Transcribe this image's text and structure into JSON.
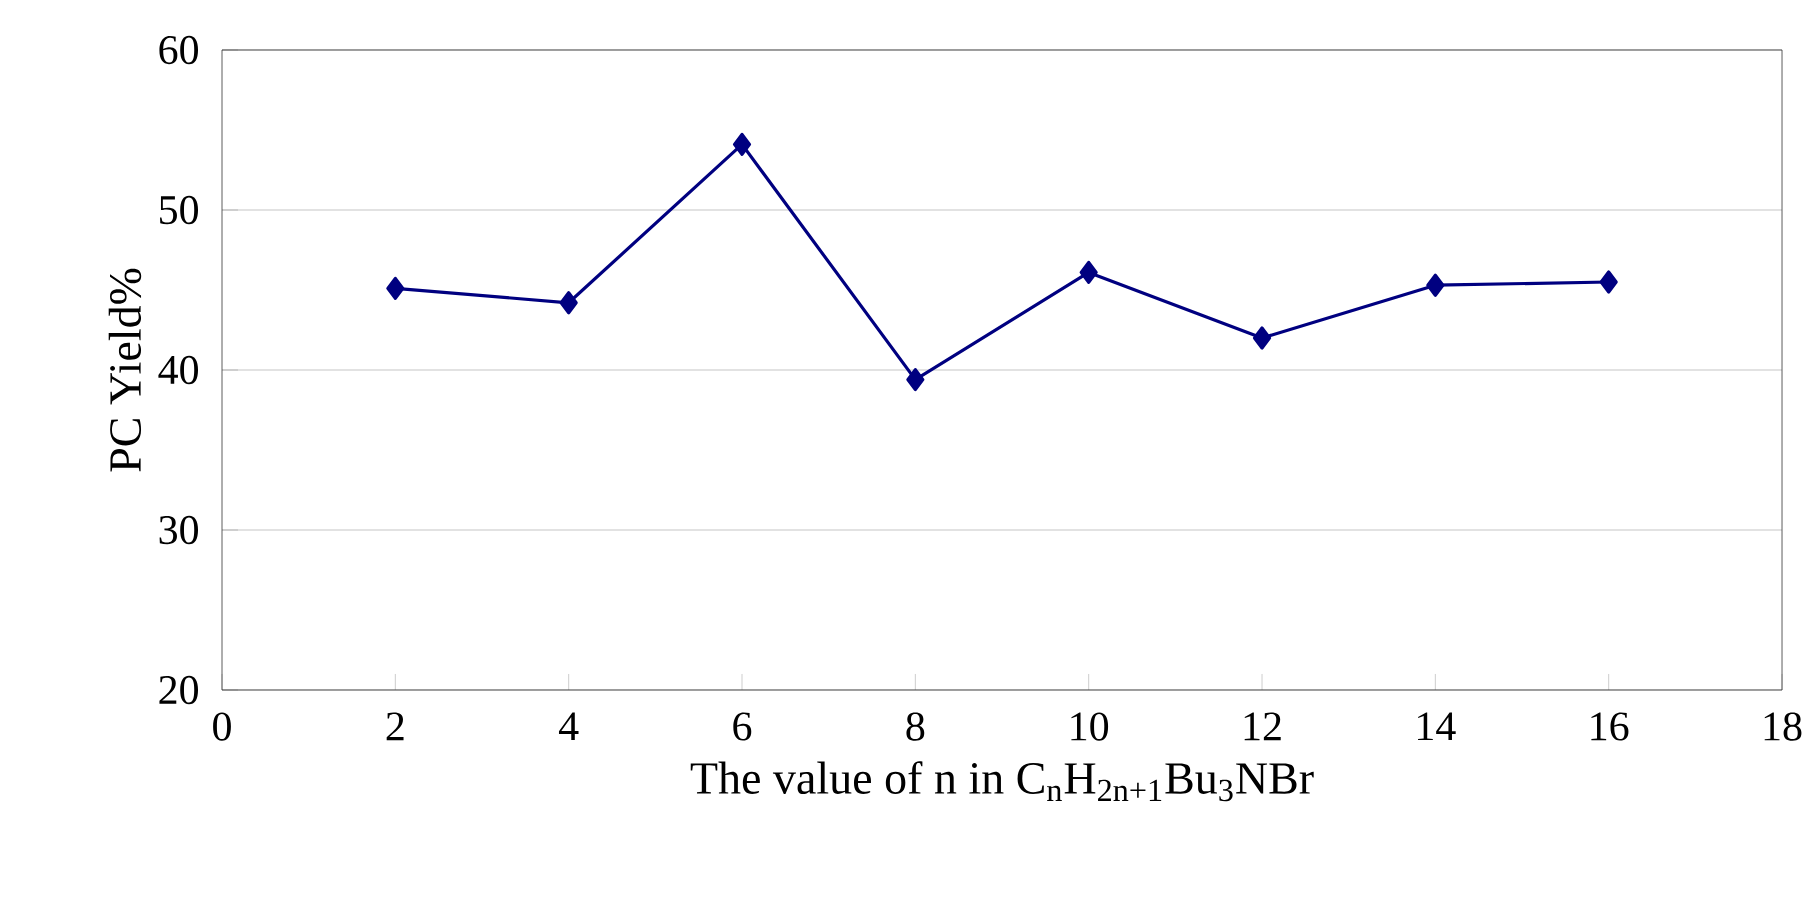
{
  "chart_data": {
    "type": "line",
    "xlabel": "The value of n in C$_{n}$H$_{2n+1}$Bu$_{3}$NBr",
    "ylabel": "PC Yield%",
    "x": [
      2,
      4,
      6,
      8,
      10,
      12,
      14,
      16
    ],
    "series": [
      {
        "color": "#000080",
        "values": [
          45.1,
          44.2,
          54.1,
          39.4,
          46.1,
          42.0,
          45.3,
          45.5
        ]
      }
    ],
    "xlim": [
      0,
      18
    ],
    "xticks": [
      0,
      2,
      4,
      6,
      8,
      10,
      12,
      14,
      16,
      18
    ],
    "ylim": [
      20,
      60
    ],
    "yticks": [
      20,
      30,
      40,
      50,
      60
    ],
    "grid": "y",
    "marker": "diamond",
    "line_style": "solid"
  }
}
